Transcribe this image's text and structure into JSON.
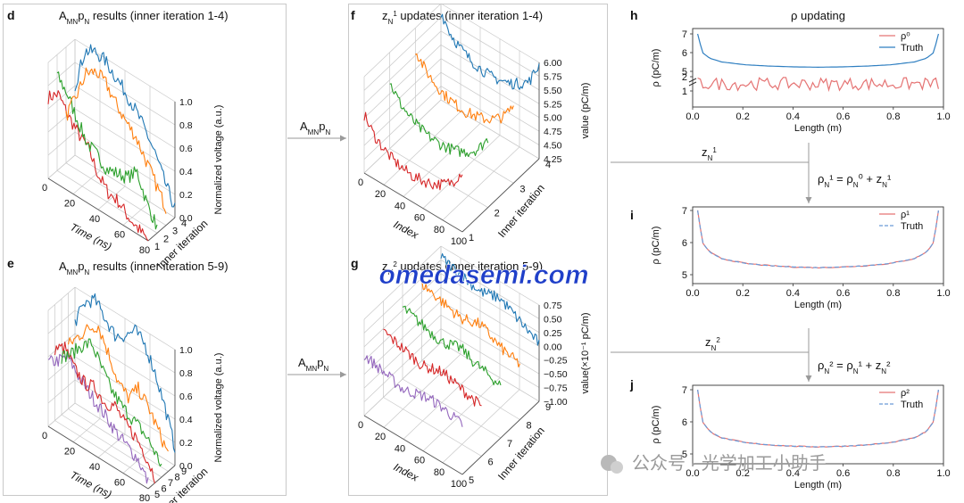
{
  "panels": {
    "d": {
      "letter": "d",
      "title_A": "A",
      "title_MN": "MN",
      "title_p": "p",
      "title_N": "N",
      "title_rest": " results (inner iteration 1-4)",
      "xlabel": "Time (ns)",
      "ylabel": "Inner iteration",
      "zlabel": "Normalized voltage (a.u.)",
      "xticks": [
        "0",
        "20",
        "40",
        "60",
        "80"
      ],
      "yticks": [
        "1",
        "2",
        "3",
        "4"
      ],
      "zticks": [
        "0.0",
        "0.2",
        "0.4",
        "0.6",
        "0.8",
        "1.0"
      ]
    },
    "e": {
      "letter": "e",
      "title_A": "A",
      "title_MN": "MN",
      "title_p": "p",
      "title_N": "N",
      "title_rest": " results (inner iteration 5-9)",
      "xlabel": "Time (ns)",
      "ylabel": "Inner iteration",
      "zlabel": "Normalized voltage (a.u.)",
      "xticks": [
        "0",
        "20",
        "40",
        "60",
        "80"
      ],
      "yticks": [
        "5",
        "6",
        "7",
        "8",
        "9"
      ],
      "zticks": [
        "0.0",
        "0.2",
        "0.4",
        "0.6",
        "0.8",
        "1.0"
      ]
    },
    "f": {
      "letter": "f",
      "title_z": "z",
      "title_sub": "N",
      "title_sup": "1",
      "title_rest": " updates (inner iteration 1-4)",
      "xlabel": "Index",
      "ylabel": "Inner iteration",
      "zlabel": "value (pC/m)",
      "xticks": [
        "0",
        "20",
        "40",
        "60",
        "80",
        "100"
      ],
      "yticks": [
        "1",
        "2",
        "3",
        "4"
      ],
      "zticks": [
        "4.25",
        "4.50",
        "4.75",
        "5.00",
        "5.25",
        "5.50",
        "5.75",
        "6.00"
      ]
    },
    "g": {
      "letter": "g",
      "title_z": "z",
      "title_sub": "N",
      "title_sup": "2",
      "title_rest": " updates (inner iteration 5-9)",
      "xlabel": "Index",
      "ylabel": "Inner iteration",
      "zlabel": "value(×10⁻¹ pC/m)",
      "xticks": [
        "0",
        "20",
        "40",
        "60",
        "80",
        "100"
      ],
      "yticks": [
        "5",
        "6",
        "7",
        "8",
        "9"
      ],
      "zticks": [
        "−1.00",
        "−0.75",
        "−0.50",
        "−0.25",
        "0.00",
        "0.25",
        "0.50",
        "0.75"
      ]
    },
    "h": {
      "letter": "h",
      "title": "ρ updating",
      "xlabel": "Length (m)",
      "ylabel": "ρ (pC/m)",
      "legend": [
        "ρ⁰",
        "Truth"
      ],
      "xticks": [
        "0.0",
        "0.2",
        "0.4",
        "0.6",
        "0.8",
        "1.0"
      ],
      "yticks": [
        "7",
        "6",
        "5",
        "2",
        "1"
      ]
    },
    "i": {
      "letter": "i",
      "xlabel": "Length (m)",
      "ylabel": "ρ (pC/m)",
      "legend": [
        "ρ¹",
        "Truth"
      ],
      "xticks": [
        "0.0",
        "0.2",
        "0.4",
        "0.6",
        "0.8",
        "1.0"
      ],
      "yticks": [
        "7",
        "6",
        "5"
      ]
    },
    "j": {
      "letter": "j",
      "xlabel": "Length (m)",
      "ylabel": "ρ (pC/m)",
      "legend": [
        "ρ²",
        "Truth"
      ],
      "xticks": [
        "0.0",
        "0.2",
        "0.4",
        "0.6",
        "0.8",
        "1.0"
      ],
      "yticks": [
        "7",
        "6",
        "5"
      ]
    }
  },
  "arrows": {
    "amn1": {
      "A": "A",
      "MN": "MN",
      "p": "p",
      "N": "N"
    },
    "amn2": {
      "A": "A",
      "MN": "MN",
      "p": "p",
      "N": "N"
    },
    "z1": {
      "z": "z",
      "sub": "N",
      "sup": "1"
    },
    "z2": {
      "z": "z",
      "sub": "N",
      "sup": "2"
    },
    "eq1": "ρN¹ = ρN⁰ + zN¹",
    "eq2": "ρN² = ρN¹ + zN²"
  },
  "watermark": "omedasemi.com",
  "wechat_caption": "公众号 · 光学加工小助手",
  "colors": {
    "red": "#d62728",
    "orange": "#ff7f0e",
    "green": "#2ca02c",
    "blue": "#1f77b4",
    "purple": "#9467bd",
    "red_light": "#e57373",
    "blue_line": "#2f7fc1",
    "truth_dash": "#6a9bd8",
    "watermark": "#1f3fc9"
  },
  "chart_data": [
    {
      "panel": "d",
      "type": "line",
      "x_label": "Time (ns)",
      "x_range": [
        0,
        80
      ],
      "z_range": [
        0,
        1.0
      ],
      "series": [
        {
          "iteration": 1,
          "color": "red",
          "x": [
            0,
            8,
            16,
            24,
            32,
            40,
            48,
            56,
            64,
            72,
            80
          ],
          "values": [
            0.7,
            0.78,
            0.65,
            0.55,
            0.48,
            0.3,
            0.2,
            0.18,
            0.1,
            0.05,
            0.0
          ]
        },
        {
          "iteration": 2,
          "color": "green",
          "x": [
            0,
            8,
            16,
            24,
            32,
            40,
            48,
            56,
            64,
            72,
            80
          ],
          "values": [
            0.82,
            0.72,
            0.55,
            0.4,
            0.35,
            0.28,
            0.3,
            0.32,
            0.42,
            0.2,
            0.05
          ]
        },
        {
          "iteration": 3,
          "color": "orange",
          "x": [
            0,
            8,
            16,
            24,
            32,
            40,
            48,
            56,
            64,
            72,
            80
          ],
          "values": [
            0.4,
            0.62,
            0.88,
            0.95,
            0.9,
            0.78,
            0.68,
            0.6,
            0.45,
            0.3,
            0.15
          ]
        },
        {
          "iteration": 4,
          "color": "blue",
          "x": [
            0,
            8,
            16,
            24,
            32,
            40,
            48,
            56,
            64,
            72,
            80
          ],
          "values": [
            0.6,
            0.95,
            1.0,
            0.98,
            0.9,
            0.82,
            0.72,
            0.6,
            0.45,
            0.25,
            0.08
          ]
        }
      ]
    },
    {
      "panel": "e",
      "type": "line",
      "x_label": "Time (ns)",
      "x_range": [
        0,
        80
      ],
      "z_range": [
        0,
        1.0
      ],
      "series": [
        {
          "iteration": 5,
          "color": "purple",
          "x": [
            0,
            8,
            16,
            24,
            32,
            40,
            48,
            56,
            64,
            72,
            80
          ],
          "values": [
            0.55,
            0.62,
            0.7,
            0.6,
            0.52,
            0.45,
            0.38,
            0.3,
            0.25,
            0.2,
            0.05
          ]
        },
        {
          "iteration": 6,
          "color": "red",
          "x": [
            0,
            8,
            16,
            24,
            32,
            40,
            48,
            56,
            64,
            72,
            80
          ],
          "values": [
            0.62,
            0.68,
            0.55,
            0.48,
            0.5,
            0.42,
            0.45,
            0.35,
            0.3,
            0.2,
            0.05
          ]
        },
        {
          "iteration": 7,
          "color": "green",
          "x": [
            0,
            8,
            16,
            24,
            32,
            40,
            48,
            56,
            64,
            72,
            80
          ],
          "values": [
            0.5,
            0.58,
            0.7,
            0.78,
            0.62,
            0.48,
            0.4,
            0.35,
            0.3,
            0.22,
            0.1
          ]
        },
        {
          "iteration": 8,
          "color": "orange",
          "x": [
            0,
            8,
            16,
            24,
            32,
            40,
            48,
            56,
            64,
            72,
            80
          ],
          "values": [
            0.55,
            0.68,
            0.8,
            0.88,
            0.7,
            0.5,
            0.42,
            0.55,
            0.45,
            0.3,
            0.15
          ]
        },
        {
          "iteration": 9,
          "color": "blue",
          "x": [
            0,
            8,
            16,
            24,
            32,
            40,
            48,
            56,
            64,
            72,
            80
          ],
          "values": [
            0.7,
            0.92,
            1.0,
            0.9,
            0.8,
            0.85,
            0.95,
            0.88,
            0.7,
            0.45,
            0.15
          ]
        }
      ]
    },
    {
      "panel": "f",
      "type": "line",
      "x_label": "Index",
      "x_range": [
        0,
        100
      ],
      "z_range": [
        4.25,
        6.0
      ],
      "series": [
        {
          "iteration": 1,
          "color": "red",
          "x": [
            0,
            10,
            20,
            30,
            40,
            50,
            60,
            70,
            80,
            90,
            100
          ],
          "values": [
            5.3,
            5.05,
            4.9,
            4.8,
            4.75,
            4.72,
            4.75,
            4.8,
            4.9,
            5.05,
            5.35
          ]
        },
        {
          "iteration": 2,
          "color": "green",
          "x": [
            0,
            10,
            20,
            30,
            40,
            50,
            60,
            70,
            80,
            90,
            100
          ],
          "values": [
            5.45,
            5.2,
            5.05,
            4.95,
            4.9,
            4.88,
            4.9,
            4.95,
            5.05,
            5.2,
            5.5
          ]
        },
        {
          "iteration": 3,
          "color": "orange",
          "x": [
            0,
            10,
            20,
            30,
            40,
            50,
            60,
            70,
            80,
            90,
            100
          ],
          "values": [
            5.6,
            5.35,
            5.2,
            5.1,
            5.05,
            5.02,
            5.05,
            5.1,
            5.2,
            5.35,
            5.65
          ]
        },
        {
          "iteration": 4,
          "color": "blue",
          "x": [
            0,
            10,
            20,
            30,
            40,
            50,
            60,
            70,
            80,
            90,
            100
          ],
          "values": [
            5.85,
            5.55,
            5.4,
            5.3,
            5.25,
            5.22,
            5.25,
            5.3,
            5.4,
            5.55,
            5.95
          ]
        }
      ]
    },
    {
      "panel": "g",
      "type": "line",
      "x_label": "Index",
      "x_range": [
        0,
        100
      ],
      "z_range": [
        -1.0,
        0.75
      ],
      "series": [
        {
          "iteration": 5,
          "color": "purple",
          "x": [
            0,
            10,
            20,
            30,
            40,
            50,
            60,
            70,
            80,
            90,
            100
          ],
          "values": [
            0.1,
            0.05,
            0.0,
            -0.05,
            -0.1,
            -0.05,
            0.0,
            0.02,
            0.0,
            -0.05,
            -0.1
          ]
        },
        {
          "iteration": 6,
          "color": "red",
          "x": [
            0,
            10,
            20,
            30,
            40,
            50,
            60,
            70,
            80,
            90,
            100
          ],
          "values": [
            0.2,
            0.15,
            0.1,
            0.05,
            0.0,
            0.05,
            0.1,
            0.05,
            0.0,
            -0.05,
            -0.1
          ]
        },
        {
          "iteration": 7,
          "color": "green",
          "x": [
            0,
            10,
            20,
            30,
            40,
            50,
            60,
            70,
            80,
            90,
            100
          ],
          "values": [
            0.3,
            0.25,
            0.2,
            0.15,
            0.1,
            0.15,
            0.2,
            0.1,
            0.05,
            0.0,
            -0.05
          ]
        },
        {
          "iteration": 8,
          "color": "orange",
          "x": [
            0,
            10,
            20,
            30,
            40,
            50,
            60,
            70,
            80,
            90,
            100
          ],
          "values": [
            0.4,
            0.35,
            0.3,
            0.25,
            0.2,
            0.25,
            0.3,
            0.2,
            0.1,
            0.05,
            0.0
          ]
        },
        {
          "iteration": 9,
          "color": "blue",
          "x": [
            0,
            10,
            20,
            30,
            40,
            50,
            60,
            70,
            80,
            90,
            100
          ],
          "values": [
            0.55,
            0.5,
            0.45,
            0.4,
            0.35,
            0.4,
            0.45,
            0.35,
            0.25,
            0.15,
            0.05
          ]
        }
      ]
    },
    {
      "panel": "h",
      "type": "line",
      "x_range": [
        0,
        1.0
      ],
      "y_axis": "broken",
      "y_range_lower": [
        1,
        2
      ],
      "y_range_upper": [
        5,
        7
      ],
      "series": [
        {
          "name": "ρ⁰",
          "color": "red_light",
          "x": [
            0.0,
            0.1,
            0.2,
            0.3,
            0.4,
            0.5,
            0.6,
            0.7,
            0.8,
            0.9,
            1.0
          ],
          "values": [
            1.5,
            1.7,
            1.3,
            1.8,
            1.2,
            1.6,
            1.4,
            1.8,
            1.3,
            1.6,
            1.5
          ]
        },
        {
          "name": "Truth",
          "color": "blue_line",
          "x": [
            0.0,
            0.02,
            0.05,
            0.1,
            0.2,
            0.3,
            0.4,
            0.5,
            0.6,
            0.7,
            0.8,
            0.9,
            0.95,
            0.98,
            1.0
          ],
          "values": [
            7.0,
            6.0,
            5.7,
            5.5,
            5.35,
            5.28,
            5.24,
            5.22,
            5.24,
            5.28,
            5.35,
            5.5,
            5.7,
            6.0,
            7.0
          ]
        }
      ]
    },
    {
      "panel": "i",
      "type": "line",
      "x_range": [
        0,
        1.0
      ],
      "y_range": [
        4.9,
        7.0
      ],
      "series": [
        {
          "name": "ρ¹",
          "color": "red_light",
          "x": [
            0.0,
            0.02,
            0.05,
            0.1,
            0.2,
            0.3,
            0.4,
            0.5,
            0.6,
            0.7,
            0.8,
            0.9,
            0.95,
            0.98,
            1.0
          ],
          "values": [
            7.0,
            6.0,
            5.7,
            5.5,
            5.35,
            5.28,
            5.24,
            5.22,
            5.24,
            5.28,
            5.35,
            5.5,
            5.7,
            6.0,
            7.0
          ]
        },
        {
          "name": "Truth",
          "color": "truth_dash",
          "x": [
            0.0,
            0.02,
            0.05,
            0.1,
            0.2,
            0.3,
            0.4,
            0.5,
            0.6,
            0.7,
            0.8,
            0.9,
            0.95,
            0.98,
            1.0
          ],
          "values": [
            7.0,
            6.0,
            5.7,
            5.5,
            5.35,
            5.28,
            5.24,
            5.22,
            5.24,
            5.28,
            5.35,
            5.5,
            5.7,
            6.0,
            7.0
          ]
        }
      ]
    },
    {
      "panel": "j",
      "type": "line",
      "x_range": [
        0,
        1.0
      ],
      "y_range": [
        4.9,
        7.0
      ],
      "series": [
        {
          "name": "ρ²",
          "color": "red_light",
          "x": [
            0.0,
            0.02,
            0.05,
            0.1,
            0.2,
            0.3,
            0.4,
            0.5,
            0.6,
            0.7,
            0.8,
            0.9,
            0.95,
            0.98,
            1.0
          ],
          "values": [
            7.0,
            6.0,
            5.7,
            5.5,
            5.35,
            5.28,
            5.24,
            5.22,
            5.24,
            5.28,
            5.35,
            5.5,
            5.7,
            6.0,
            7.0
          ]
        },
        {
          "name": "Truth",
          "color": "truth_dash",
          "x": [
            0.0,
            0.02,
            0.05,
            0.1,
            0.2,
            0.3,
            0.4,
            0.5,
            0.6,
            0.7,
            0.8,
            0.9,
            0.95,
            0.98,
            1.0
          ],
          "values": [
            7.0,
            6.0,
            5.7,
            5.5,
            5.35,
            5.28,
            5.24,
            5.22,
            5.24,
            5.28,
            5.35,
            5.5,
            5.7,
            6.0,
            7.0
          ]
        }
      ]
    }
  ]
}
